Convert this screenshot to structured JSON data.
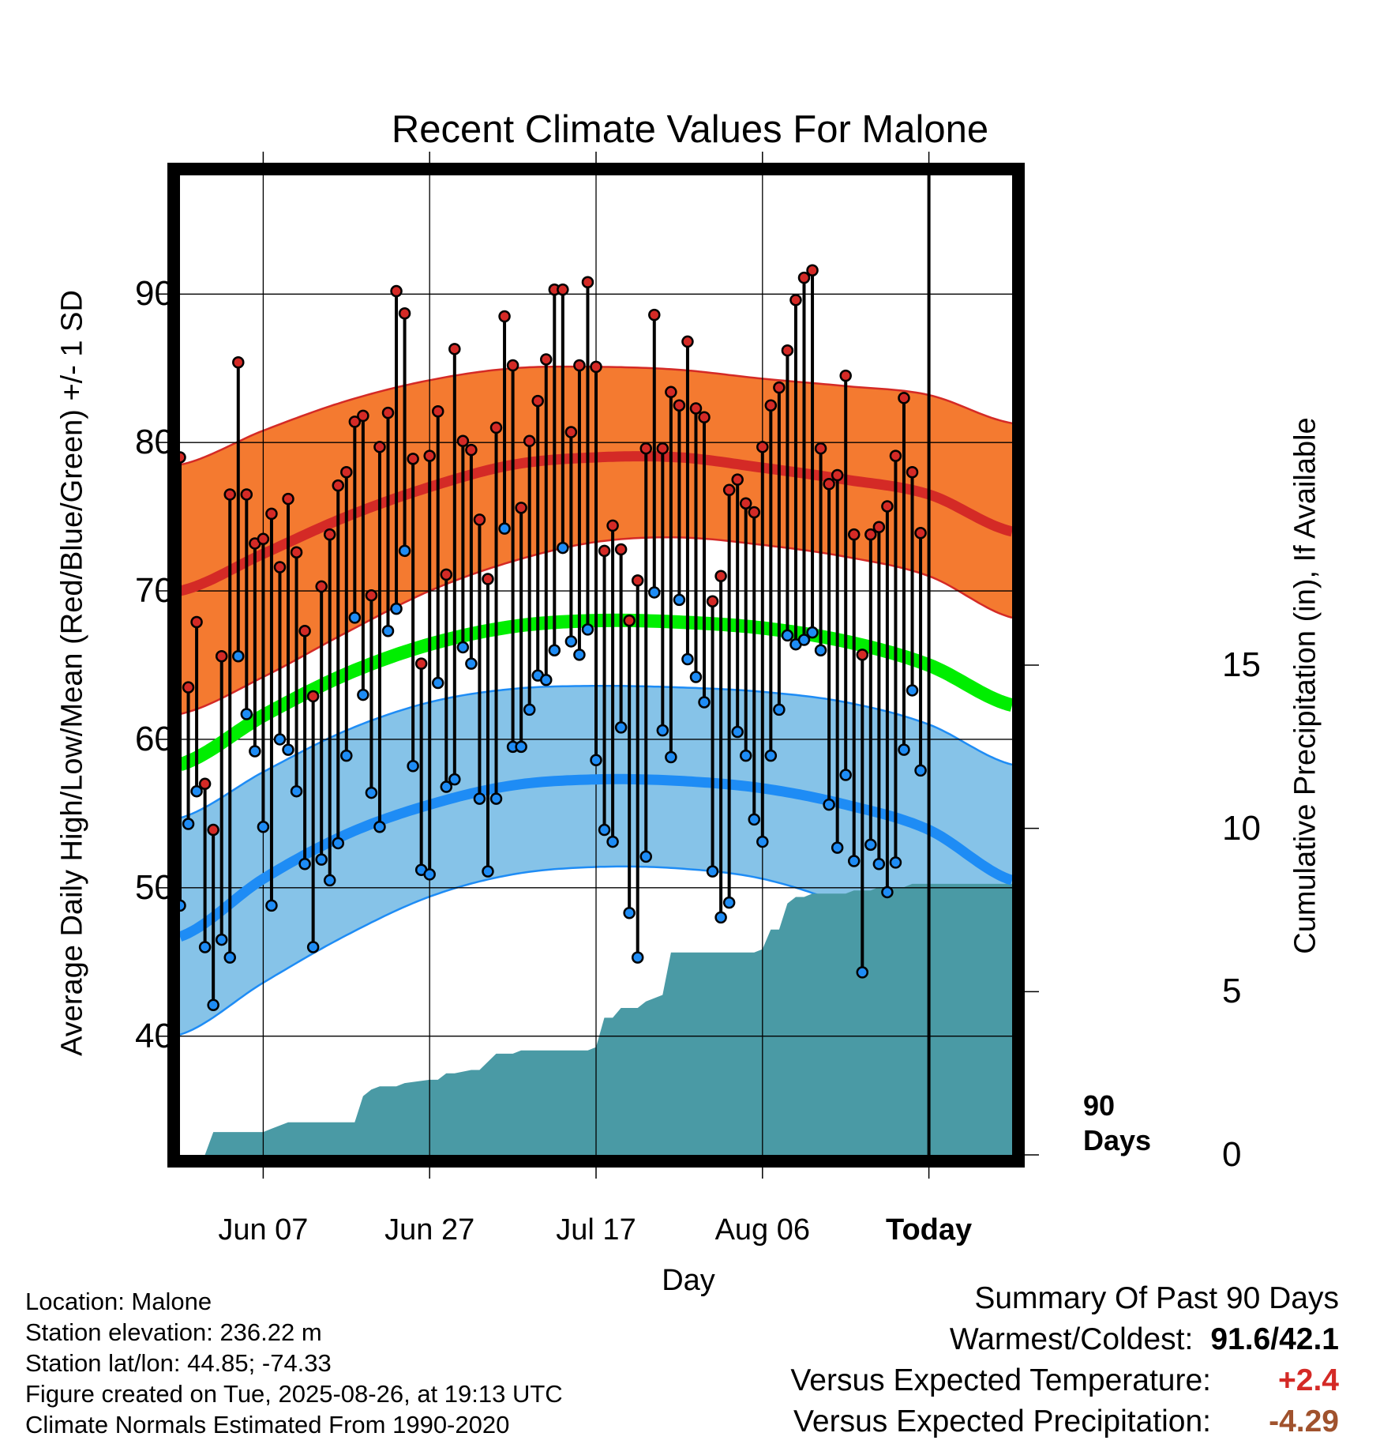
{
  "title": "Recent Climate Values For Malone",
  "y_label_left": "Average Daily High/Low/Mean (Red/Blue/Green) +/- 1 SD",
  "y_label_right": "Cumulative Precipitation (in), If Available",
  "x_label": "Day",
  "x_ticks": [
    {
      "label": "Jun 07",
      "day": 10
    },
    {
      "label": "Jun 27",
      "day": 30
    },
    {
      "label": "Jul 17",
      "day": 50
    },
    {
      "label": "Aug 06",
      "day": 70
    },
    {
      "label": "Today",
      "day": 90
    }
  ],
  "today_marker": {
    "line1": "90",
    "line2": "Days"
  },
  "info": {
    "location": "Location: Malone",
    "elevation": "Station elevation: 236.22 m",
    "latlon": "Station lat/lon: 44.85; -74.33",
    "created": "Figure created on Tue, 2025-08-26, at 19:13 UTC",
    "normals": "Climate Normals Estimated From 1990-2020"
  },
  "summary": {
    "heading": "Summary Of Past 90 Days",
    "warm_cold_label": "Warmest/Coldest:",
    "warm_cold_value": "91.6/42.1",
    "temp_label": "Versus Expected Temperature:",
    "temp_value": "+2.4",
    "precip_label": "Versus Expected Precipitation:",
    "precip_value": "-4.29"
  },
  "colors": {
    "high_band": "#f47a30",
    "high_line": "#d42a26",
    "low_band": "#86c3e8",
    "low_line": "#1e8cf5",
    "mean_line": "#00ee00",
    "precip_fill": "#4a9aa5",
    "high_dot": "#d42a26",
    "low_dot": "#1e8cf5",
    "summary_temp": "#d42a26",
    "summary_precip": "#a0522d"
  },
  "chart_data": {
    "type": "line",
    "x_domain_days": [
      0,
      100
    ],
    "temp_ylim": [
      32,
      98
    ],
    "temp_ticks": [
      40,
      50,
      60,
      70,
      80,
      90
    ],
    "precip_ticks": [
      0,
      5,
      10,
      15
    ],
    "precip_ylim": [
      0,
      30
    ],
    "normal_x_days": [
      0,
      10,
      20,
      30,
      40,
      50,
      60,
      70,
      80,
      90,
      100
    ],
    "normal_high": [
      70,
      72.5,
      75,
      77,
      78.5,
      79,
      79,
      78.3,
      77.5,
      76.5,
      74
    ],
    "normal_high_upper": [
      78.5,
      80.8,
      82.8,
      84.2,
      85,
      85.1,
      84.9,
      84.3,
      83.8,
      83.2,
      81.3
    ],
    "normal_high_lower": [
      61.7,
      64.2,
      67.2,
      70,
      72,
      73.3,
      73.6,
      73.1,
      72.3,
      71,
      68.2
    ],
    "normal_low": [
      46.7,
      50.6,
      53.6,
      55.6,
      56.9,
      57.3,
      57.2,
      56.7,
      55.6,
      53.9,
      50.5
    ],
    "normal_low_upper": [
      54.7,
      57.8,
      60.6,
      62.5,
      63.4,
      63.6,
      63.5,
      63.2,
      62.5,
      61,
      58.3
    ],
    "normal_low_lower": [
      40.1,
      43.6,
      46.8,
      49.4,
      50.9,
      51.4,
      51.3,
      50.6,
      48.8,
      46,
      43.9
    ],
    "normal_mean": [
      58.3,
      61.6,
      64.4,
      66.4,
      67.6,
      68,
      67.9,
      67.5,
      66.6,
      65,
      62.3
    ],
    "daily_high": [
      79,
      63.5,
      67.9,
      57,
      53.9,
      65.6,
      76.5,
      85.4,
      76.5,
      73.2,
      73.5,
      75.2,
      71.6,
      76.2,
      72.6,
      67.3,
      62.9,
      70.3,
      73.8,
      77.1,
      78,
      81.4,
      81.8,
      69.7,
      79.7,
      82,
      90.2,
      88.7,
      78.9,
      65.1,
      79.1,
      82.1,
      71.1,
      86.3,
      80.1,
      79.5,
      74.8,
      70.8,
      81,
      88.5,
      85.2,
      75.6,
      80.1,
      82.8,
      85.6,
      90.3,
      90.3,
      80.7,
      85.2,
      90.8,
      85.1,
      72.7,
      74.4,
      72.8,
      68,
      70.7,
      79.6,
      88.6,
      79.6,
      83.4,
      82.5,
      86.8,
      82.3,
      81.7,
      69.3,
      71,
      76.8,
      77.5,
      75.9,
      75.3,
      79.7,
      82.5,
      83.7,
      86.2,
      89.6,
      91.1,
      91.6,
      79.6,
      77.2,
      77.8,
      84.5,
      73.8,
      65.7,
      73.8,
      74.3,
      75.7,
      79.1,
      83,
      78,
      73.9
    ],
    "daily_low": [
      48.8,
      54.3,
      56.5,
      46,
      42.1,
      46.5,
      45.3,
      65.6,
      61.7,
      59.2,
      54.1,
      48.8,
      60,
      59.3,
      56.5,
      51.6,
      46,
      51.9,
      50.5,
      53,
      58.9,
      68.2,
      63,
      56.4,
      54.1,
      67.3,
      68.8,
      72.7,
      58.2,
      51.2,
      50.9,
      63.8,
      56.8,
      57.3,
      66.2,
      65.1,
      56,
      51.1,
      56,
      74.2,
      59.5,
      59.5,
      62,
      64.3,
      64,
      66,
      72.9,
      66.6,
      65.7,
      67.4,
      58.6,
      53.9,
      53.1,
      60.8,
      48.3,
      45.3,
      52.1,
      69.9,
      60.6,
      58.8,
      69.4,
      65.4,
      64.2,
      62.5,
      51.1,
      48,
      49,
      60.5,
      58.9,
      54.6,
      53.1,
      58.9,
      62,
      67,
      66.4,
      66.7,
      67.2,
      66,
      55.6,
      52.7,
      57.6,
      51.8,
      44.3,
      52.9,
      51.6,
      49.7,
      51.7,
      59.3,
      63.3,
      57.9
    ],
    "precip_days": [
      0,
      1,
      3,
      4,
      10,
      11,
      13,
      14,
      21,
      22,
      23,
      24,
      26,
      27,
      30,
      31,
      32,
      33,
      35,
      36,
      38,
      39,
      40,
      41,
      46,
      47,
      49,
      50,
      51,
      52,
      53,
      54,
      55,
      56,
      58,
      59,
      60,
      61,
      62,
      63,
      64,
      65,
      66,
      67,
      68,
      69,
      70,
      71,
      72,
      73,
      74,
      75,
      76,
      77,
      78,
      79,
      80,
      81,
      83,
      84,
      86,
      87,
      88,
      89,
      90,
      96,
      100
    ],
    "precip_values": [
      0,
      0,
      0,
      0.7,
      0.7,
      0.8,
      1,
      1,
      1,
      1.8,
      2,
      2.1,
      2.1,
      2.2,
      2.3,
      2.3,
      2.5,
      2.5,
      2.6,
      2.6,
      3.1,
      3.1,
      3.1,
      3.2,
      3.2,
      3.2,
      3.2,
      3.3,
      4.2,
      4.2,
      4.5,
      4.5,
      4.5,
      4.7,
      4.9,
      6.2,
      6.2,
      6.2,
      6.2,
      6.2,
      6.2,
      6.2,
      6.2,
      6.2,
      6.2,
      6.2,
      6.3,
      6.9,
      6.9,
      7.7,
      7.9,
      7.9,
      8,
      8,
      8,
      8,
      8,
      8.1,
      8.1,
      8.2,
      8.2,
      8.2,
      8.3,
      8.3,
      8.3,
      8.3,
      8.3
    ],
    "today_day": 90
  }
}
